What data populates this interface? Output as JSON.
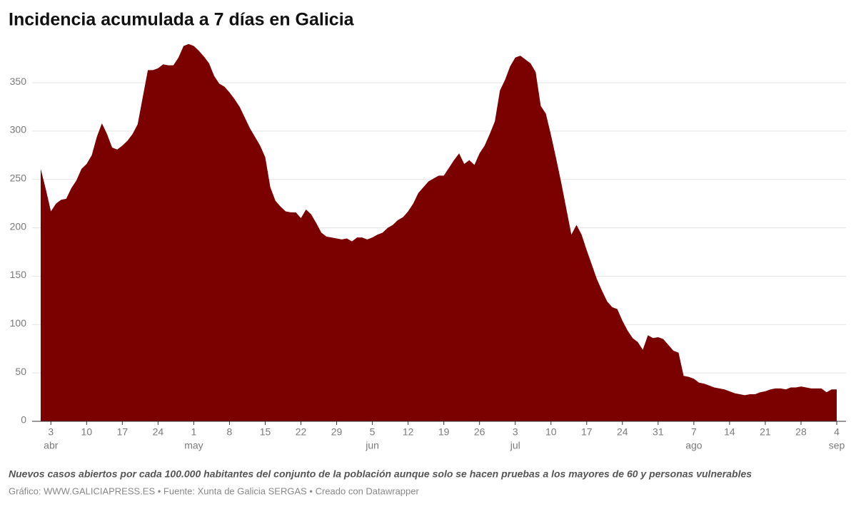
{
  "chart_data": {
    "type": "area",
    "title": "Incidencia acumulada a 7 días en Galicia",
    "subtitle": "Nuevos casos abiertos por cada 100.000 habitantes del conjunto de la población aunque solo se hacen pruebas a los mayores de 60 y personas vulnerables",
    "source": "Gráfico: WWW.GALICIAPRESS.ES • Fuente: Xunta de Galicia SERGAS • Creado con Datawrapper",
    "color": "#7b0000",
    "grid": true,
    "xlim": [
      "04-01",
      "09-04"
    ],
    "ylim": [
      0,
      395
    ],
    "yticks": [
      0,
      50,
      100,
      150,
      200,
      250,
      300,
      350
    ],
    "xticks": [
      {
        "value": "04-03",
        "label": "3"
      },
      {
        "value": "04-10",
        "label": "10"
      },
      {
        "value": "04-17",
        "label": "17"
      },
      {
        "value": "04-24",
        "label": "24"
      },
      {
        "value": "05-01",
        "label": "1"
      },
      {
        "value": "05-08",
        "label": "8"
      },
      {
        "value": "05-15",
        "label": "15"
      },
      {
        "value": "05-22",
        "label": "22"
      },
      {
        "value": "05-29",
        "label": "29"
      },
      {
        "value": "06-05",
        "label": "5"
      },
      {
        "value": "06-12",
        "label": "12"
      },
      {
        "value": "06-19",
        "label": "19"
      },
      {
        "value": "06-26",
        "label": "26"
      },
      {
        "value": "07-03",
        "label": "3"
      },
      {
        "value": "07-10",
        "label": "10"
      },
      {
        "value": "07-17",
        "label": "17"
      },
      {
        "value": "07-24",
        "label": "24"
      },
      {
        "value": "07-31",
        "label": "31"
      },
      {
        "value": "08-07",
        "label": "7"
      },
      {
        "value": "08-14",
        "label": "14"
      },
      {
        "value": "08-21",
        "label": "21"
      },
      {
        "value": "08-28",
        "label": "28"
      },
      {
        "value": "09-04",
        "label": "4"
      }
    ],
    "x_month_labels": [
      {
        "value": "04-03",
        "label": "abr"
      },
      {
        "value": "05-01",
        "label": "may"
      },
      {
        "value": "06-05",
        "label": "jun"
      },
      {
        "value": "07-03",
        "label": "jul"
      },
      {
        "value": "08-07",
        "label": "ago"
      },
      {
        "value": "09-04",
        "label": "sep"
      }
    ],
    "x": [
      "04-01",
      "04-02",
      "04-03",
      "04-04",
      "04-05",
      "04-06",
      "04-07",
      "04-08",
      "04-09",
      "04-10",
      "04-11",
      "04-12",
      "04-13",
      "04-14",
      "04-15",
      "04-16",
      "04-17",
      "04-18",
      "04-19",
      "04-20",
      "04-21",
      "04-22",
      "04-23",
      "04-24",
      "04-25",
      "04-26",
      "04-27",
      "04-28",
      "04-29",
      "04-30",
      "05-01",
      "05-02",
      "05-03",
      "05-04",
      "05-05",
      "05-06",
      "05-07",
      "05-08",
      "05-09",
      "05-10",
      "05-11",
      "05-12",
      "05-13",
      "05-14",
      "05-15",
      "05-16",
      "05-17",
      "05-18",
      "05-19",
      "05-20",
      "05-21",
      "05-22",
      "05-23",
      "05-24",
      "05-25",
      "05-26",
      "05-27",
      "05-28",
      "05-29",
      "05-30",
      "05-31",
      "06-01",
      "06-02",
      "06-03",
      "06-04",
      "06-05",
      "06-06",
      "06-07",
      "06-08",
      "06-09",
      "06-10",
      "06-11",
      "06-12",
      "06-13",
      "06-14",
      "06-15",
      "06-16",
      "06-17",
      "06-18",
      "06-19",
      "06-20",
      "06-21",
      "06-22",
      "06-23",
      "06-24",
      "06-25",
      "06-26",
      "06-27",
      "06-28",
      "06-29",
      "06-30",
      "07-01",
      "07-02",
      "07-03",
      "07-04",
      "07-05",
      "07-06",
      "07-07",
      "07-08",
      "07-09",
      "07-10",
      "07-11",
      "07-12",
      "07-13",
      "07-14",
      "07-15",
      "07-16",
      "07-17",
      "07-18",
      "07-19",
      "07-20",
      "07-21",
      "07-22",
      "07-23",
      "07-24",
      "07-25",
      "07-26",
      "07-27",
      "07-28",
      "07-29",
      "07-30",
      "07-31",
      "08-01",
      "08-02",
      "08-03",
      "08-04",
      "08-05",
      "08-06",
      "08-07",
      "08-08",
      "08-09",
      "08-10",
      "08-11",
      "08-12",
      "08-13",
      "08-14",
      "08-15",
      "08-16",
      "08-17",
      "08-18",
      "08-19",
      "08-20",
      "08-21",
      "08-22",
      "08-23",
      "08-24",
      "08-25",
      "08-26",
      "08-27",
      "08-28",
      "08-29",
      "08-30",
      "08-31",
      "09-01",
      "09-02",
      "09-03",
      "09-04"
    ],
    "values": [
      261,
      240,
      217,
      225,
      229,
      230,
      241,
      249,
      261,
      266,
      275,
      294,
      308,
      297,
      283,
      281,
      285,
      290,
      297,
      307,
      335,
      363,
      363,
      365,
      369,
      368,
      368,
      376,
      388,
      390,
      388,
      383,
      377,
      370,
      357,
      349,
      346,
      340,
      333,
      325,
      314,
      303,
      294,
      285,
      273,
      242,
      228,
      222,
      217,
      216,
      216,
      210,
      219,
      214,
      205,
      195,
      191,
      190,
      189,
      188,
      189,
      186,
      190,
      190,
      188,
      190,
      193,
      195,
      200,
      203,
      208,
      211,
      217,
      225,
      236,
      242,
      248,
      251,
      254,
      254,
      262,
      270,
      277,
      266,
      270,
      265,
      277,
      285,
      297,
      310,
      342,
      353,
      367,
      376,
      378,
      374,
      370,
      361,
      326,
      318,
      296,
      272,
      247,
      220,
      193,
      203,
      193,
      177,
      162,
      147,
      135,
      124,
      118,
      116,
      104,
      94,
      86,
      82,
      74,
      89,
      86,
      87,
      85,
      79,
      73,
      71,
      47,
      46,
      44,
      40,
      39,
      37,
      35,
      34,
      33,
      31,
      29,
      28,
      27,
      28,
      28,
      30,
      31,
      33,
      34,
      34,
      33,
      35,
      35,
      36,
      35,
      34,
      34,
      34,
      30,
      33,
      33
    ]
  }
}
